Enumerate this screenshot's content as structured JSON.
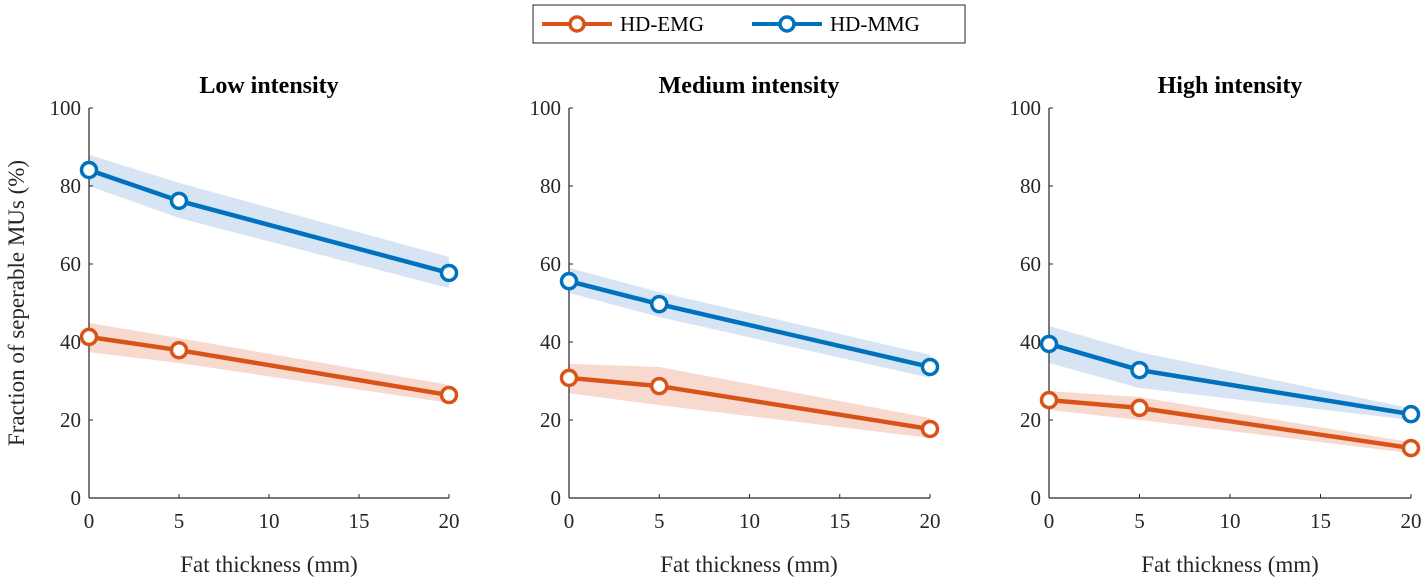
{
  "chart_data": [
    {
      "type": "line",
      "title": "Low intensity",
      "xlabel": "Fat thickness (mm)",
      "ylabel": "Fraction of seperable MUs (%)",
      "x": [
        0,
        5,
        20
      ],
      "xlim": [
        0,
        20
      ],
      "ylim": [
        0,
        100
      ],
      "xticks": [
        0,
        5,
        10,
        15,
        20
      ],
      "yticks": [
        0,
        20,
        40,
        60,
        80,
        100
      ],
      "series": [
        {
          "name": "HD-EMG",
          "color": "#D95319",
          "band_color": "#F7D9CF",
          "values": [
            41.3,
            37.9,
            26.4
          ],
          "lower": [
            37.4,
            34.6,
            24.4
          ],
          "upper": [
            44.9,
            41.0,
            29.0
          ]
        },
        {
          "name": "HD-MMG",
          "color": "#0072BD",
          "band_color": "#D6E4F3",
          "values": [
            84.1,
            76.2,
            57.7
          ],
          "lower": [
            80.0,
            71.8,
            53.8
          ],
          "upper": [
            88.0,
            80.8,
            61.8
          ]
        }
      ]
    },
    {
      "type": "line",
      "title": "Medium intensity",
      "xlabel": "Fat thickness (mm)",
      "ylabel": "",
      "x": [
        0,
        5,
        20
      ],
      "xlim": [
        0,
        20
      ],
      "ylim": [
        0,
        100
      ],
      "xticks": [
        0,
        5,
        10,
        15,
        20
      ],
      "yticks": [
        0,
        20,
        40,
        60,
        80,
        100
      ],
      "series": [
        {
          "name": "HD-EMG",
          "color": "#D95319",
          "band_color": "#F7D9CF",
          "values": [
            30.8,
            28.7,
            17.7
          ],
          "lower": [
            26.9,
            23.8,
            15.4
          ],
          "upper": [
            34.4,
            33.6,
            20.5
          ]
        },
        {
          "name": "HD-MMG",
          "color": "#0072BD",
          "band_color": "#D6E4F3",
          "values": [
            55.6,
            49.7,
            33.6
          ],
          "lower": [
            52.6,
            46.4,
            30.8
          ],
          "upper": [
            59.0,
            52.8,
            36.7
          ]
        }
      ]
    },
    {
      "type": "line",
      "title": "High intensity",
      "xlabel": "Fat thickness (mm)",
      "ylabel": "",
      "x": [
        0,
        5,
        20
      ],
      "xlim": [
        0,
        20
      ],
      "ylim": [
        0,
        100
      ],
      "xticks": [
        0,
        5,
        10,
        15,
        20
      ],
      "yticks": [
        0,
        20,
        40,
        60,
        80,
        100
      ],
      "series": [
        {
          "name": "HD-EMG",
          "color": "#D95319",
          "band_color": "#F7D9CF",
          "values": [
            25.1,
            23.1,
            12.8
          ],
          "lower": [
            22.6,
            20.0,
            11.5
          ],
          "upper": [
            27.4,
            25.9,
            14.3
          ]
        },
        {
          "name": "HD-MMG",
          "color": "#0072BD",
          "band_color": "#D6E4F3",
          "values": [
            39.5,
            32.8,
            21.5
          ],
          "lower": [
            34.6,
            28.2,
            20.0
          ],
          "upper": [
            44.1,
            37.4,
            23.0
          ]
        }
      ]
    }
  ],
  "legend": {
    "placement": "top-center",
    "items": [
      {
        "label": "HD-EMG",
        "color": "#D95319"
      },
      {
        "label": "HD-MMG",
        "color": "#0072BD"
      }
    ]
  }
}
